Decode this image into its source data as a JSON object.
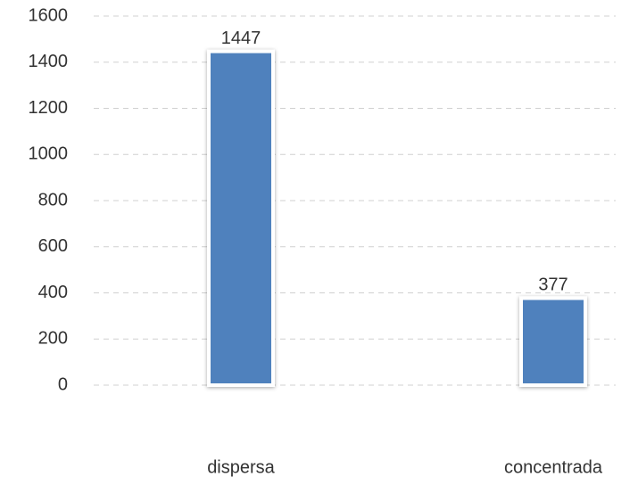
{
  "chart_data": {
    "type": "bar",
    "categories": [
      "dispersa",
      "concentrada"
    ],
    "values": [
      1447,
      377
    ],
    "color": "#4f81bd",
    "ylim": [
      0,
      1600
    ],
    "yticks": [
      0,
      200,
      400,
      600,
      800,
      1000,
      1200,
      1400,
      1600
    ],
    "grid": true
  }
}
